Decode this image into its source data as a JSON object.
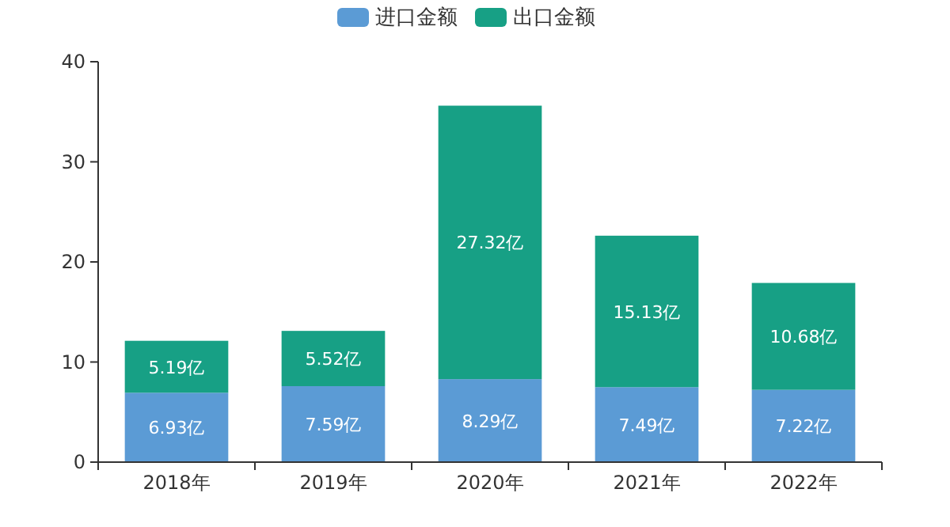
{
  "chart_data": {
    "type": "bar",
    "stacked": true,
    "legend": "top",
    "categories": [
      "2018年",
      "2019年",
      "2020年",
      "2021年",
      "2022年"
    ],
    "series": [
      {
        "name": "进口金额",
        "color": "#5b9bd5",
        "values": [
          6.93,
          7.59,
          8.29,
          7.49,
          7.22
        ],
        "value_labels": [
          "6.93亿",
          "7.59亿",
          "8.29亿",
          "7.49亿",
          "7.22亿"
        ]
      },
      {
        "name": "出口金额",
        "color": "#17a085",
        "values": [
          5.19,
          5.52,
          27.32,
          15.13,
          10.68
        ],
        "value_labels": [
          "5.19亿",
          "5.52亿",
          "27.32亿",
          "15.13亿",
          "10.68亿"
        ]
      }
    ],
    "ylim": [
      0,
      40
    ],
    "yticks": [
      0,
      10,
      20,
      30,
      40
    ]
  }
}
